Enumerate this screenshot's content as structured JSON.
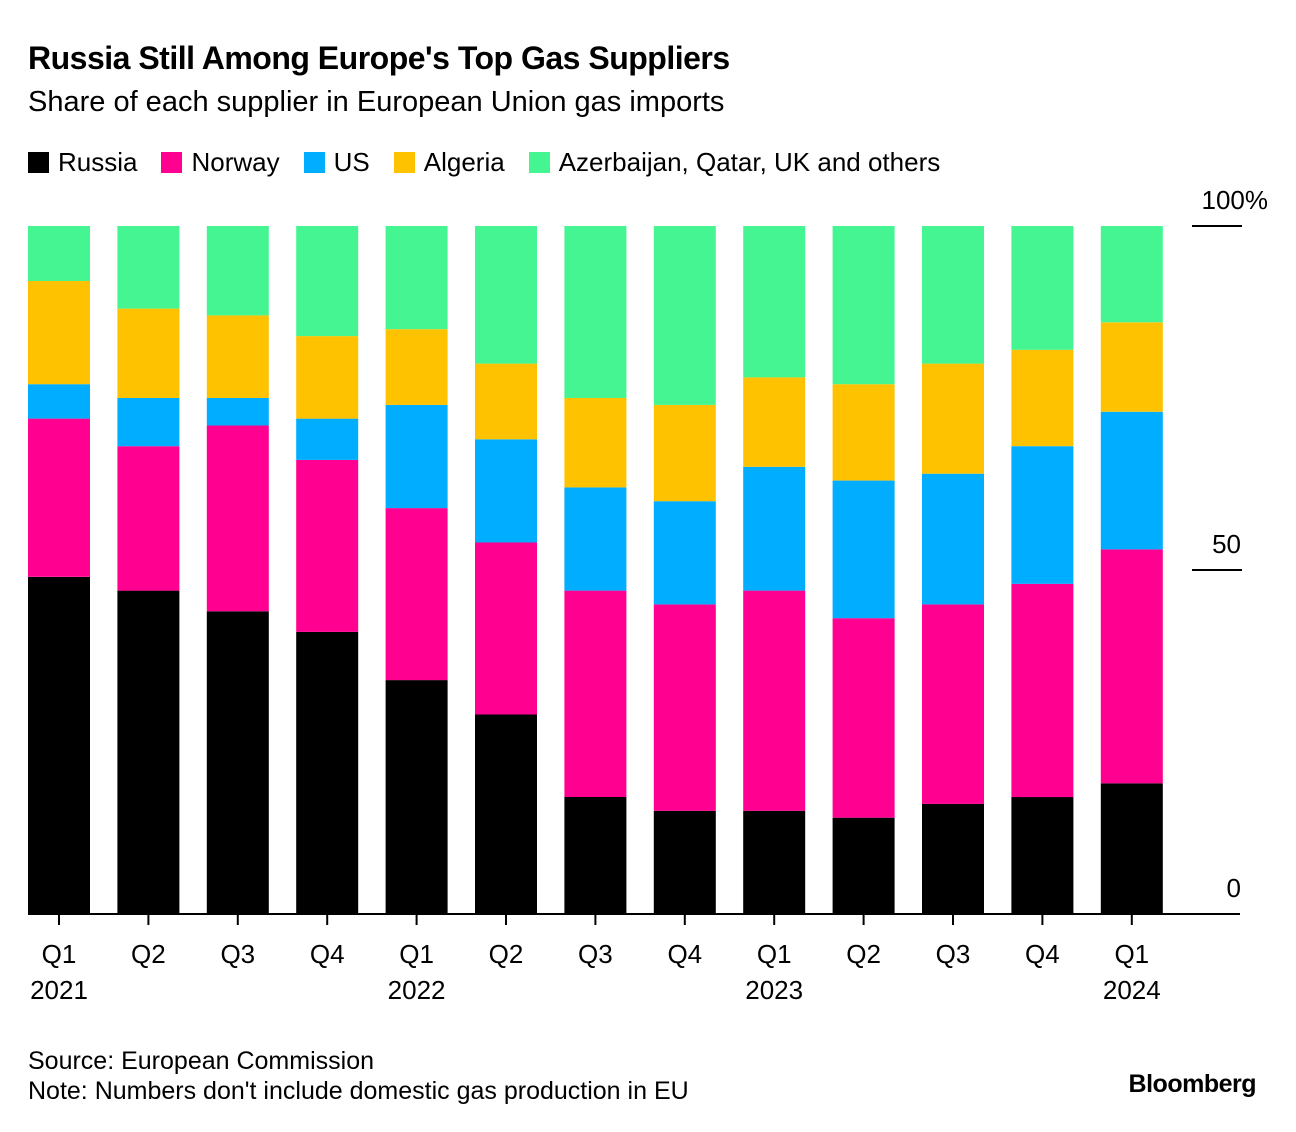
{
  "header": {
    "title": "Russia Still Among Europe's Top Gas Suppliers",
    "subtitle": "Share of each supplier in European Union gas imports"
  },
  "footer": {
    "source": "Source: European Commission",
    "note": "Note: Numbers don't include domestic gas production in EU",
    "brand": "Bloomberg"
  },
  "chart_data": {
    "type": "bar",
    "stacked": true,
    "title": "Russia Still Among Europe's Top Gas Suppliers",
    "subtitle": "Share of each supplier in European Union gas imports",
    "xlabel": "",
    "ylabel": "",
    "ylim": [
      0,
      100
    ],
    "y_ticks": [
      0,
      50,
      100
    ],
    "y_tick_labels": [
      "0",
      "50",
      "100%"
    ],
    "y_axis_side": "right",
    "grid": false,
    "legend_position": "top-left",
    "categories": [
      "Q1 2021",
      "Q2 2021",
      "Q3 2021",
      "Q4 2021",
      "Q1 2022",
      "Q2 2022",
      "Q3 2022",
      "Q4 2022",
      "Q1 2023",
      "Q2 2023",
      "Q3 2023",
      "Q4 2023",
      "Q1 2024"
    ],
    "x_tick_labels": [
      {
        "quarter": "Q1",
        "year": "2021"
      },
      {
        "quarter": "Q2",
        "year": ""
      },
      {
        "quarter": "Q3",
        "year": ""
      },
      {
        "quarter": "Q4",
        "year": ""
      },
      {
        "quarter": "Q1",
        "year": "2022"
      },
      {
        "quarter": "Q2",
        "year": ""
      },
      {
        "quarter": "Q3",
        "year": ""
      },
      {
        "quarter": "Q4",
        "year": ""
      },
      {
        "quarter": "Q1",
        "year": "2023"
      },
      {
        "quarter": "Q2",
        "year": ""
      },
      {
        "quarter": "Q3",
        "year": ""
      },
      {
        "quarter": "Q4",
        "year": ""
      },
      {
        "quarter": "Q1",
        "year": "2024"
      }
    ],
    "series": [
      {
        "name": "Russia",
        "color": "#000000",
        "values": [
          49,
          47,
          44,
          41,
          34,
          29,
          17,
          15,
          15,
          14,
          16,
          17,
          19
        ]
      },
      {
        "name": "Norway",
        "color": "#ff0090",
        "values": [
          23,
          21,
          27,
          25,
          25,
          25,
          30,
          30,
          32,
          29,
          29,
          31,
          34
        ]
      },
      {
        "name": "US",
        "color": "#00adff",
        "values": [
          5,
          7,
          4,
          6,
          15,
          15,
          15,
          15,
          18,
          20,
          19,
          20,
          20
        ]
      },
      {
        "name": "Algeria",
        "color": "#ffc200",
        "values": [
          15,
          13,
          12,
          12,
          11,
          11,
          13,
          14,
          13,
          14,
          16,
          14,
          13
        ]
      },
      {
        "name": "Azerbaijan, Qatar, UK and others",
        "color": "#44f592",
        "values": [
          8,
          12,
          13,
          16,
          15,
          20,
          25,
          26,
          22,
          23,
          20,
          18,
          14
        ]
      }
    ]
  }
}
